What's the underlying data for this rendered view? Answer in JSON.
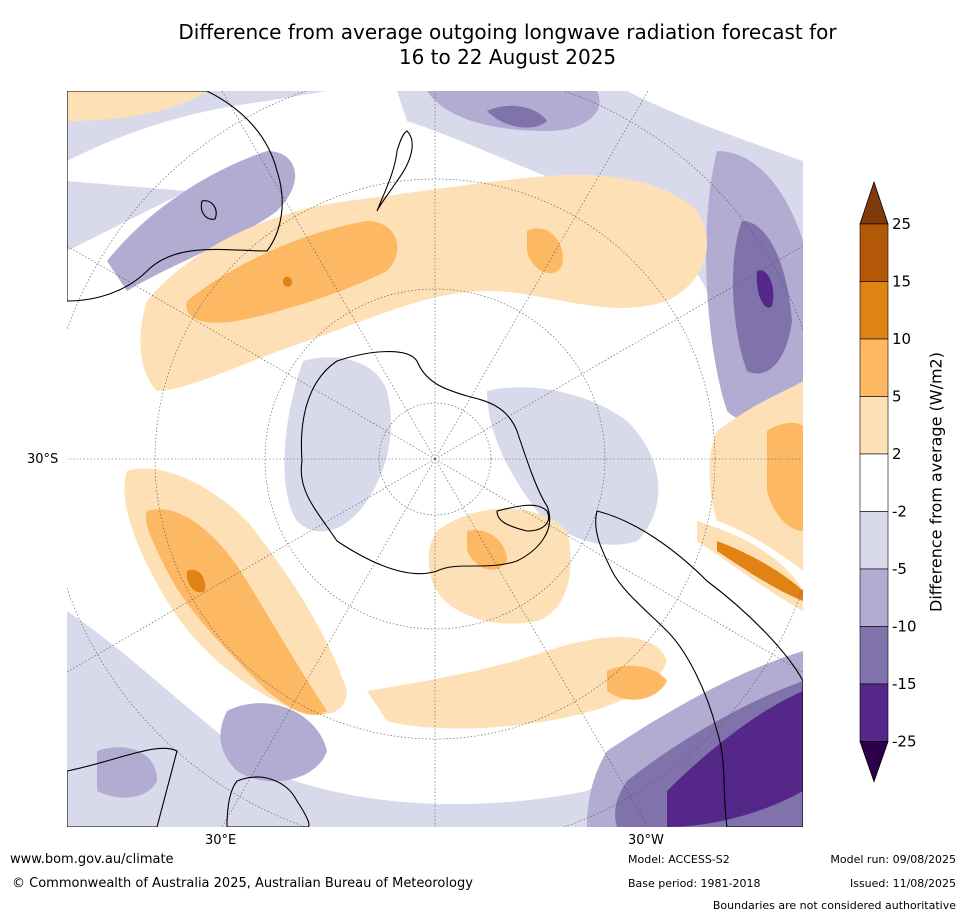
{
  "title_line1": "Difference from average outgoing longwave radiation forecast for",
  "title_line2": "16 to 22 August 2025",
  "map": {
    "lat_label": "30°S",
    "lon_labels": [
      "30°E",
      "30°W"
    ]
  },
  "colorbar": {
    "label": "Difference from average (W/m2)",
    "ticks": [
      "25",
      "15",
      "10",
      "5",
      "2",
      "-2",
      "-5",
      "-10",
      "-15",
      "-25"
    ],
    "colors": {
      "over": "#7f3b08",
      "b15_25": "#b35806",
      "b10_15": "#e08214",
      "b5_10": "#fdb863",
      "b2_5": "#fee0b6",
      "neutral": "#ffffff",
      "m5_m2": "#d8daeb",
      "m10_m5": "#b2abd2",
      "m15_m10": "#8073ac",
      "m25_m15": "#542788",
      "under": "#2d004b"
    }
  },
  "footer": {
    "website": "www.bom.gov.au/climate",
    "copyright": "© Commonwealth of Australia 2025, Australian Bureau of Meteorology",
    "model": "Model: ACCESS-S2",
    "base_period": "Base period: 1981-2018",
    "model_run": "Model run: 09/08/2025",
    "issued": "Issued: 11/08/2025",
    "disclaimer": "Boundaries are not considered authoritative"
  }
}
